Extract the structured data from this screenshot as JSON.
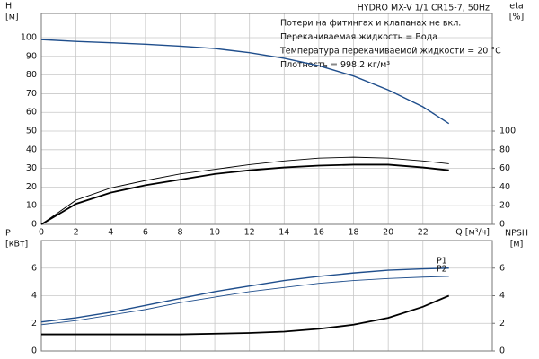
{
  "chart_data": [
    {
      "type": "line",
      "title": "HYDRO MX-V 1/1 CR15-7, 50Hz",
      "annotations": [
        "Потери на фитингах и клапанах не вкл.",
        "Перекачиваемая жидкость = Вода",
        "Температура перекачиваемой жидкости = 20 °C",
        "Плотность = 998.2 кг/м³"
      ],
      "xlabel": "Q [м³/ч]",
      "ylabel": [
        "H",
        "[м]"
      ],
      "y2label": [
        "eta",
        "[%]"
      ],
      "xlim": [
        0,
        26
      ],
      "xticks": [
        0,
        2,
        4,
        6,
        8,
        10,
        12,
        14,
        16,
        18,
        20,
        22
      ],
      "ylim": [
        0,
        113
      ],
      "yticks": [
        0,
        10,
        20,
        30,
        40,
        50,
        60,
        70,
        80,
        90,
        100
      ],
      "y2lim": [
        0,
        226
      ],
      "y2ticks": [
        0,
        20,
        40,
        60,
        80,
        100
      ],
      "grid": true,
      "series": [
        {
          "color": "#1f4e8c",
          "width": 1.4,
          "x": [
            0,
            2,
            4,
            6,
            8,
            10,
            12,
            14,
            16,
            18,
            20,
            22,
            23.5
          ],
          "values": [
            99,
            98,
            97.3,
            96.5,
            95.5,
            94.2,
            92,
            89,
            85,
            79.5,
            72,
            63,
            54
          ]
        },
        {
          "color": "#000000",
          "width": 1.8,
          "axis": "y2",
          "x": [
            0,
            2,
            4,
            6,
            8,
            10,
            12,
            14,
            16,
            18,
            20,
            22,
            23.5
          ],
          "values": [
            0,
            22,
            34,
            42,
            48,
            54,
            58,
            61,
            63,
            64,
            64,
            61,
            58
          ]
        },
        {
          "color": "#000000",
          "width": 0.9,
          "axis": "y2",
          "x": [
            0,
            2,
            4,
            6,
            8,
            10,
            12,
            14,
            16,
            18,
            20,
            22,
            23.5
          ],
          "values": [
            0,
            26,
            39,
            47,
            54,
            59,
            64,
            68,
            71,
            72,
            71,
            68,
            65
          ]
        }
      ]
    },
    {
      "type": "line",
      "ylabel": [
        "P",
        "[кВт]"
      ],
      "y2label": [
        "NPSH",
        "[м]"
      ],
      "xlim": [
        0,
        26
      ],
      "xticks": [
        0,
        2,
        4,
        6,
        8,
        10,
        12,
        14,
        16,
        18,
        20,
        22
      ],
      "xtick_labels": false,
      "ylim": [
        0,
        8
      ],
      "yticks": [
        0,
        2,
        4,
        6
      ],
      "y2lim": [
        0,
        8
      ],
      "y2ticks": [
        0,
        2,
        4,
        6
      ],
      "grid": true,
      "series": [
        {
          "name": "P1",
          "color": "#1f4e8c",
          "width": 1.4,
          "x": [
            0,
            2,
            4,
            6,
            8,
            10,
            12,
            14,
            16,
            18,
            20,
            22,
            23.5
          ],
          "values": [
            2.1,
            2.4,
            2.8,
            3.3,
            3.8,
            4.3,
            4.7,
            5.1,
            5.4,
            5.65,
            5.85,
            5.95,
            6.0
          ]
        },
        {
          "name": "P2",
          "color": "#1f4e8c",
          "width": 0.9,
          "x": [
            0,
            2,
            4,
            6,
            8,
            10,
            12,
            14,
            16,
            18,
            20,
            22,
            23.5
          ],
          "values": [
            1.9,
            2.2,
            2.6,
            3.0,
            3.5,
            3.9,
            4.3,
            4.6,
            4.9,
            5.1,
            5.25,
            5.35,
            5.4
          ]
        },
        {
          "color": "#000000",
          "width": 1.8,
          "axis": "y2",
          "x": [
            0,
            4,
            8,
            12,
            14,
            16,
            18,
            20,
            22,
            23.5
          ],
          "values": [
            1.2,
            1.2,
            1.2,
            1.3,
            1.4,
            1.6,
            1.9,
            2.4,
            3.2,
            4.0
          ]
        }
      ]
    }
  ]
}
